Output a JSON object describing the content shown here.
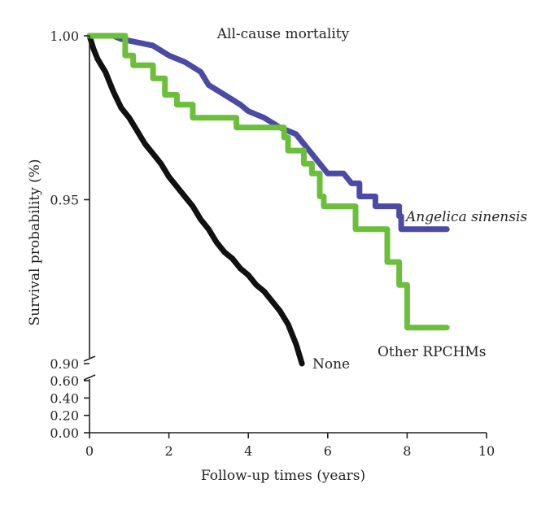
{
  "chart_data": {
    "type": "line",
    "title": "All-cause mortality",
    "xlabel": "Follow-up times (years)",
    "ylabel": "Survival probability (%)",
    "xlim": [
      0,
      10
    ],
    "ylim_upper": [
      0.9,
      1.0
    ],
    "ylim_lower": [
      0.0,
      0.6
    ],
    "broken_y_axis": true,
    "grid": false,
    "legend": "inline labels at line ends",
    "x_ticks": [
      {
        "value": 0,
        "label": "0"
      },
      {
        "value": 2,
        "label": "2"
      },
      {
        "value": 4,
        "label": "4"
      },
      {
        "value": 6,
        "label": "6"
      },
      {
        "value": 8,
        "label": "8"
      },
      {
        "value": 10,
        "label": "10"
      }
    ],
    "y_ticks_upper": [
      {
        "value": 1.0,
        "label": "1.00"
      },
      {
        "value": 0.95,
        "label": "0.95"
      },
      {
        "value": 0.9,
        "label": "0.90"
      }
    ],
    "y_ticks_lower": [
      {
        "value": 0.6,
        "label": "0.60"
      },
      {
        "value": 0.4,
        "label": "0.40"
      },
      {
        "value": 0.2,
        "label": "0.20"
      },
      {
        "value": 0.0,
        "label": "0.00"
      }
    ],
    "series": [
      {
        "name": "None",
        "color": "#111111",
        "label_style": "normal",
        "points": [
          [
            0,
            1.0
          ],
          [
            0.1,
            0.996
          ],
          [
            0.2,
            0.993
          ],
          [
            0.3,
            0.991
          ],
          [
            0.4,
            0.989
          ],
          [
            0.5,
            0.986
          ],
          [
            0.6,
            0.983
          ],
          [
            0.8,
            0.978
          ],
          [
            1.0,
            0.975
          ],
          [
            1.2,
            0.971
          ],
          [
            1.4,
            0.967
          ],
          [
            1.6,
            0.964
          ],
          [
            1.8,
            0.961
          ],
          [
            2.0,
            0.957
          ],
          [
            2.2,
            0.954
          ],
          [
            2.4,
            0.951
          ],
          [
            2.6,
            0.948
          ],
          [
            2.8,
            0.944
          ],
          [
            3.0,
            0.941
          ],
          [
            3.2,
            0.937
          ],
          [
            3.4,
            0.934
          ],
          [
            3.6,
            0.932
          ],
          [
            3.8,
            0.929
          ],
          [
            4.0,
            0.927
          ],
          [
            4.2,
            0.924
          ],
          [
            4.4,
            0.922
          ],
          [
            4.6,
            0.919
          ],
          [
            4.8,
            0.916
          ],
          [
            5.0,
            0.912
          ],
          [
            5.2,
            0.906
          ],
          [
            5.35,
            0.9
          ]
        ]
      },
      {
        "name": "Angelica sinensis",
        "color": "#4b4ba6",
        "label_style": "italic",
        "points": [
          [
            0,
            1.0
          ],
          [
            0.6,
            1.0
          ],
          [
            0.8,
            0.999
          ],
          [
            1.2,
            0.998
          ],
          [
            1.6,
            0.997
          ],
          [
            2.0,
            0.994
          ],
          [
            2.4,
            0.992
          ],
          [
            2.8,
            0.989
          ],
          [
            3.0,
            0.985
          ],
          [
            3.4,
            0.982
          ],
          [
            3.8,
            0.979
          ],
          [
            4.0,
            0.977
          ],
          [
            4.4,
            0.975
          ],
          [
            4.8,
            0.972
          ],
          [
            5.2,
            0.97
          ],
          [
            5.4,
            0.967
          ],
          [
            5.6,
            0.964
          ],
          [
            5.8,
            0.961
          ],
          [
            6.0,
            0.958
          ],
          [
            6.4,
            0.958
          ],
          [
            6.6,
            0.955
          ],
          [
            6.8,
            0.955
          ],
          [
            6.8,
            0.951
          ],
          [
            7.2,
            0.951
          ],
          [
            7.2,
            0.948
          ],
          [
            7.8,
            0.948
          ],
          [
            7.8,
            0.945
          ],
          [
            7.85,
            0.945
          ],
          [
            7.85,
            0.941
          ],
          [
            9.0,
            0.941
          ]
        ]
      },
      {
        "name": "Other RPCHMs",
        "color": "#6cbf3b",
        "label_style": "normal",
        "points": [
          [
            0,
            1.0
          ],
          [
            0.9,
            1.0
          ],
          [
            0.9,
            0.994
          ],
          [
            1.1,
            0.994
          ],
          [
            1.1,
            0.991
          ],
          [
            1.6,
            0.991
          ],
          [
            1.6,
            0.987
          ],
          [
            1.9,
            0.987
          ],
          [
            1.9,
            0.982
          ],
          [
            2.2,
            0.982
          ],
          [
            2.2,
            0.979
          ],
          [
            2.6,
            0.979
          ],
          [
            2.6,
            0.975
          ],
          [
            3.7,
            0.975
          ],
          [
            3.7,
            0.972
          ],
          [
            4.9,
            0.972
          ],
          [
            4.9,
            0.969
          ],
          [
            5.0,
            0.969
          ],
          [
            5.0,
            0.965
          ],
          [
            5.4,
            0.965
          ],
          [
            5.4,
            0.961
          ],
          [
            5.6,
            0.961
          ],
          [
            5.6,
            0.958
          ],
          [
            5.8,
            0.958
          ],
          [
            5.8,
            0.951
          ],
          [
            5.9,
            0.951
          ],
          [
            5.9,
            0.948
          ],
          [
            6.7,
            0.948
          ],
          [
            6.7,
            0.941
          ],
          [
            7.5,
            0.941
          ],
          [
            7.5,
            0.931
          ],
          [
            7.8,
            0.931
          ],
          [
            7.8,
            0.924
          ],
          [
            8.0,
            0.924
          ],
          [
            8.0,
            0.911
          ],
          [
            9.0,
            0.911
          ]
        ]
      }
    ]
  }
}
